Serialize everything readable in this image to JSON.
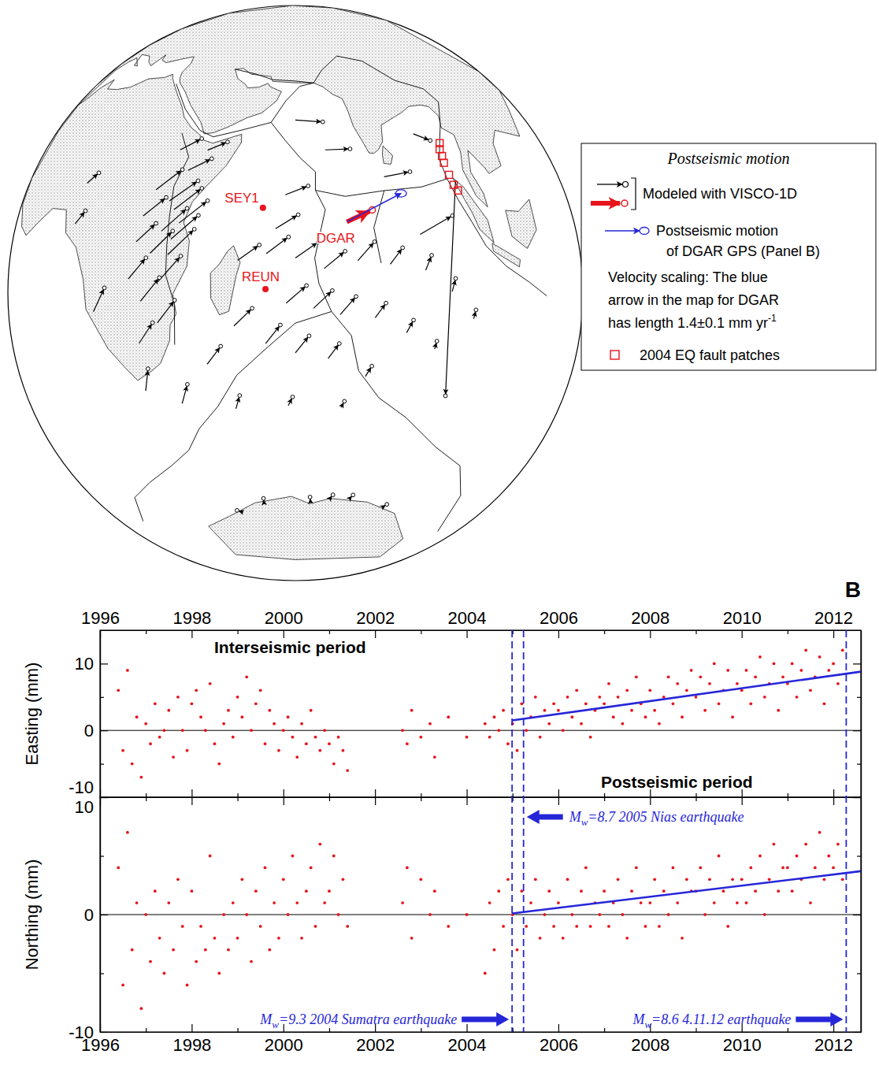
{
  "chart_data": [
    {
      "type": "map",
      "model_arrows": {
        "color": "#000000",
        "values": [
          [
            36,
            -1,
            0.7,
            0.35
          ],
          [
            33,
            2,
            0.65,
            0.35
          ],
          [
            38,
            -6,
            0.7,
            0.4
          ],
          [
            30,
            -3,
            0.6,
            0.3
          ],
          [
            35,
            -12,
            0.7,
            0.45
          ],
          [
            28,
            -8,
            0.55,
            0.3
          ],
          [
            32,
            -17,
            0.65,
            0.45
          ],
          [
            27,
            -20,
            0.6,
            0.4
          ],
          [
            30,
            -25,
            0.55,
            0.4
          ],
          [
            24,
            -28,
            0.5,
            0.35
          ],
          [
            25,
            -15,
            0.55,
            0.35
          ],
          [
            40,
            5,
            0.55,
            0.2
          ],
          [
            44,
            9,
            0.45,
            0.15
          ],
          [
            38,
            10,
            0.5,
            0.2
          ],
          [
            15,
            8,
            0.35,
            0.15
          ],
          [
            12,
            0,
            0.35,
            0.2
          ],
          [
            14,
            -19,
            0.5,
            0.4
          ],
          [
            21,
            -37.5,
            0.3,
            0.45
          ],
          [
            37,
            -3,
            0.68,
            0.38
          ],
          [
            34,
            -7,
            0.66,
            0.4
          ],
          [
            31,
            -11,
            0.62,
            0.38
          ],
          [
            36,
            -9,
            0.7,
            0.42
          ],
          [
            62,
            15,
            0.6,
            -0.05
          ],
          [
            68,
            8,
            0.55,
            0.05
          ],
          [
            80,
            3,
            0.6,
            0.2
          ],
          [
            60,
            -2,
            0.5,
            0.2
          ],
          [
            88,
            -8,
            0.75,
            0.55
          ],
          [
            87,
            14,
            0.4,
            -0.1
          ],
          [
            58,
            -9,
            0.5,
            0.3
          ],
          [
            50,
            -15,
            0.5,
            0.3
          ],
          [
            56,
            -14,
            0.5,
            0.35
          ],
          [
            62,
            -15,
            0.5,
            0.35
          ],
          [
            68,
            -17,
            0.45,
            0.4
          ],
          [
            75,
            -15,
            0.35,
            0.45
          ],
          [
            82,
            -15,
            0.25,
            0.4
          ],
          [
            90,
            -15,
            0.1,
            0.35
          ],
          [
            97,
            -18,
            0.03,
            0.3
          ],
          [
            104,
            -22,
            0,
            0.2
          ],
          [
            60,
            -24,
            0.45,
            0.38
          ],
          [
            66,
            -25,
            0.4,
            0.4
          ],
          [
            72,
            -26,
            0.32,
            0.42
          ],
          [
            80,
            -26,
            0.2,
            0.35
          ],
          [
            88,
            -28,
            0.1,
            0.3
          ],
          [
            96,
            -30,
            0,
            0.18
          ],
          [
            48,
            -28,
            0.45,
            0.35
          ],
          [
            55,
            -32,
            0.35,
            0.4
          ],
          [
            62,
            -34,
            0.3,
            0.38
          ],
          [
            70,
            -35,
            0.22,
            0.35
          ],
          [
            80,
            -38,
            0.1,
            0.25
          ],
          [
            40,
            -35,
            0.4,
            0.35
          ],
          [
            30,
            -42,
            0.3,
            0.4
          ],
          [
            45,
            -45,
            0.15,
            0.3
          ],
          [
            60,
            -45,
            0.1,
            0.2
          ],
          [
            75,
            -45,
            0.05,
            0.15
          ],
          [
            45,
            -68,
            0.02,
            0.1
          ],
          [
            70,
            -68,
            -0.02,
            0.1
          ],
          [
            80,
            -67,
            0.03,
            0.12
          ],
          [
            90,
            -66,
            0.02,
            0.1
          ],
          [
            110,
            -66,
            0.03,
            0.12
          ],
          [
            30,
            -70,
            -0.1,
            0.1
          ],
          [
            96,
            5,
            -0.6,
            -5.4
          ]
        ]
      },
      "dgar_model": {
        "lon": 72.4,
        "lat": -7.3,
        "ve": 0.56,
        "vn": 0.31,
        "color": "#e8141b"
      },
      "dgar_gps": {
        "lon": 72.4,
        "lat": -7.3,
        "ve": 1.19,
        "vn": 0.73,
        "error_east": 0.12,
        "error_north": 0.08,
        "color": "#2626d9"
      },
      "stations": {
        "color": "#e8141b",
        "points": [
          {
            "label": "SEY1",
            "lon": 55.5,
            "lat": -4.6,
            "marker": "circle"
          },
          {
            "label": "REUN",
            "lon": 55.6,
            "lat": -21.1,
            "marker": "circle"
          },
          {
            "label": "DGAR",
            "lon": 72.4,
            "lat": -7.3,
            "marker": "none"
          }
        ]
      },
      "fault_patches": {
        "color": "#e8141b",
        "marker": "square",
        "points": [
          [
            93,
            13
          ],
          [
            92.8,
            11.5
          ],
          [
            93.2,
            10
          ],
          [
            93.5,
            8.5
          ],
          [
            94.5,
            6
          ],
          [
            95.5,
            4
          ],
          [
            96.5,
            3
          ]
        ]
      },
      "key_box": {
        "title": "Postseismic motion",
        "model": "Modeled with VISCO-1D",
        "gps": [
          "Postseismic motion",
          "of DGAR GPS (Panel B)"
        ],
        "scaling": [
          "Velocity scaling: The blue",
          "arrow in the map for DGAR",
          "has length 1.4±0.1 mm yr"
        ],
        "scaling_exponent": "-1",
        "patches": "2004 EQ fault patches"
      }
    },
    {
      "type": "scatter",
      "panel_label": "B",
      "x": [
        1996.4,
        1996.5,
        1996.6,
        1996.7,
        1996.8,
        1996.9,
        1997,
        1997.1,
        1997.2,
        1997.3,
        1997.4,
        1997.5,
        1997.6,
        1997.7,
        1997.8,
        1997.9,
        1998,
        1998.1,
        1998.2,
        1998.3,
        1998.4,
        1998.5,
        1998.6,
        1998.7,
        1998.8,
        1998.9,
        1999,
        1999.1,
        1999.2,
        1999.3,
        1999.4,
        1999.5,
        1999.6,
        1999.7,
        1999.8,
        1999.9,
        2000,
        2000.1,
        2000.2,
        2000.3,
        2000.4,
        2000.5,
        2000.6,
        2000.7,
        2000.8,
        2000.9,
        2001,
        2001.1,
        2001.2,
        2001.3,
        2001.4,
        2002.6,
        2002.7,
        2002.8,
        2003,
        2003.2,
        2003.3,
        2003.6,
        2004,
        2004.4,
        2004.5,
        2004.6,
        2004.7,
        2004.8,
        2004.9,
        2005,
        2005.1,
        2005.2,
        2005.3,
        2005.4,
        2005.5,
        2005.6,
        2005.7,
        2005.8,
        2005.9,
        2006,
        2006.1,
        2006.2,
        2006.3,
        2006.4,
        2006.5,
        2006.6,
        2006.7,
        2006.8,
        2006.9,
        2007,
        2007.1,
        2007.2,
        2007.3,
        2007.4,
        2007.5,
        2007.6,
        2007.7,
        2007.8,
        2007.9,
        2008,
        2008.1,
        2008.2,
        2008.3,
        2008.4,
        2008.5,
        2008.6,
        2008.7,
        2008.8,
        2008.9,
        2009,
        2009.1,
        2009.2,
        2009.3,
        2009.4,
        2009.5,
        2009.6,
        2009.7,
        2009.8,
        2009.9,
        2010,
        2010.1,
        2010.2,
        2010.3,
        2010.4,
        2010.5,
        2010.6,
        2010.7,
        2010.8,
        2010.9,
        2011,
        2011.1,
        2011.2,
        2011.3,
        2011.4,
        2011.5,
        2011.6,
        2011.7,
        2011.8,
        2011.9,
        2012,
        2012.1,
        2012.2
      ],
      "xlim": [
        1996,
        2012.6
      ],
      "xticks": [
        1996,
        1998,
        2000,
        2002,
        2004,
        2006,
        2008,
        2010,
        2012
      ],
      "xminor_ticks": [
        1997,
        1999,
        2001,
        2003,
        2005,
        2007,
        2009,
        2011
      ],
      "annotations": [
        "Interseismic period",
        "Postseismic period"
      ],
      "events": [
        {
          "x": 2004.99,
          "label": [
            "M",
            "w",
            "=9.3 2004 Sumatra earthquake"
          ],
          "color": "#2626d9",
          "line_style": "dashed"
        },
        {
          "x": 2005.24,
          "label": [
            "M",
            "w",
            "=8.7 2005 Nias earthquake"
          ],
          "color": "#2626d9",
          "line_style": "dashed"
        },
        {
          "x": 2012.28,
          "label": [
            "M",
            "w",
            "=8.6 4.11.12 earthquake"
          ],
          "color": "#2626d9",
          "line_style": "dashed"
        }
      ],
      "subplots": [
        {
          "ylabel": "Easting (mm)",
          "ylim": [
            -10,
            15
          ],
          "yticks": [
            -10,
            0,
            10
          ],
          "yminor_ticks": [
            -5,
            5
          ],
          "reference_lines": [
            0
          ],
          "series": [
            {
              "type": "scatter",
              "color": "#e8141b",
              "marker": "circle",
              "values": [
                6,
                -3,
                9,
                -5,
                2,
                -7,
                1,
                -2,
                4,
                -1,
                0,
                3,
                -4,
                5,
                0,
                -3,
                4,
                6,
                2,
                0,
                7,
                -2,
                -5,
                1,
                3,
                -1,
                5,
                2,
                8,
                0,
                4,
                6,
                -2,
                3,
                1,
                -3,
                0,
                2,
                -1,
                -4,
                1,
                -2,
                3,
                -1,
                -3,
                0,
                -2,
                -5,
                -1,
                -3,
                -6,
                0,
                -2,
                3,
                -1,
                1,
                -4,
                2,
                -1,
                1,
                -1,
                2,
                0,
                3,
                -2,
                1,
                -3,
                4,
                0,
                2,
                5,
                -1,
                3,
                1,
                4,
                3,
                0,
                5,
                2,
                6,
                1,
                4,
                -1,
                3,
                5,
                4,
                7,
                2,
                5,
                1,
                6,
                3,
                8,
                4,
                2,
                6,
                3,
                1,
                5,
                8,
                4,
                7,
                2,
                6,
                9,
                5,
                8,
                3,
                7,
                10,
                4,
                6,
                9,
                2,
                7,
                6,
                9,
                4,
                8,
                11,
                5,
                7,
                10,
                3,
                8,
                7,
                10,
                5,
                9,
                12,
                6,
                8,
                11,
                4,
                9,
                10,
                7,
                12
              ]
            },
            {
              "type": "line",
              "color": "#2626d9",
              "line_style": "solid",
              "x": [
                2004.99,
                2012.6
              ],
              "values": [
                1.5,
                8.8
              ]
            }
          ]
        },
        {
          "ylabel": "Northing (mm)",
          "ylim": [
            -10,
            10
          ],
          "yticks": [
            -10,
            0,
            10
          ],
          "yminor_ticks": [
            -5,
            5
          ],
          "reference_lines": [
            0
          ],
          "series": [
            {
              "type": "scatter",
              "color": "#e8141b",
              "marker": "circle",
              "values": [
                4,
                -6,
                7,
                -3,
                1,
                -8,
                0,
                -4,
                2,
                -2,
                -5,
                1,
                -3,
                3,
                -1,
                -6,
                2,
                -4,
                -1,
                -3,
                5,
                -2,
                -5,
                0,
                -3,
                1,
                -2,
                3,
                0,
                -4,
                2,
                -1,
                4,
                -3,
                1,
                -2,
                3,
                0,
                5,
                1,
                -2,
                2,
                4,
                -1,
                6,
                1,
                2,
                5,
                0,
                3,
                -1,
                1,
                4,
                -2,
                3,
                0,
                2,
                -1,
                0,
                -5,
                1,
                -3,
                2,
                -1,
                3,
                0,
                -3,
                2,
                -1,
                1,
                3,
                -2,
                0,
                2,
                -1,
                1,
                -2,
                3,
                0,
                -1,
                2,
                4,
                -1,
                1,
                0,
                2,
                -1,
                1,
                3,
                0,
                -2,
                2,
                4,
                1,
                -1,
                1,
                3,
                -1,
                2,
                0,
                4,
                1,
                -2,
                3,
                2,
                2,
                4,
                0,
                3,
                1,
                5,
                2,
                -1,
                3,
                1,
                3,
                1,
                4,
                2,
                5,
                0,
                3,
                6,
                2,
                4,
                4,
                2,
                5,
                3,
                6,
                1,
                4,
                7,
                3,
                5,
                4,
                6,
                3
              ]
            },
            {
              "type": "line",
              "color": "#2626d9",
              "line_style": "solid",
              "x": [
                2004.99,
                2012.6
              ],
              "values": [
                0.1,
                3.7
              ]
            }
          ]
        }
      ]
    }
  ]
}
